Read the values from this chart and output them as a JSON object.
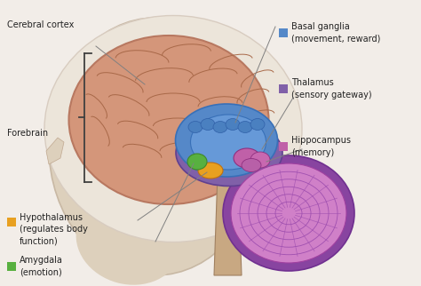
{
  "bg_color": "#f2ede8",
  "labels": {
    "cerebral_cortex": "Cerebral cortex",
    "forebrain": "Forebrain",
    "basal_ganglia": "Basal ganglia\n(movement, reward)",
    "thalamus": "Thalamus\n(sensory gateway)",
    "hippocampus": "Hippocampus\n(memory)",
    "hypothalamus": "Hypothalamus\n(regulates body\nfunction)",
    "amygdala": "Amygdala\n(emotion)"
  },
  "colors": {
    "face_skin": "#ddd0bc",
    "skull_inner": "#ece5da",
    "cerebral_cortex": "#d4967a",
    "cortex_edge": "#b87860",
    "sulci": "#a86848",
    "basal_ganglia_outer": "#5588c8",
    "basal_ganglia_inner": "#6699d8",
    "caudate": "#4a80c0",
    "thalamus": "#8060a8",
    "thalamus_ring": "#9070b8",
    "hippocampus": "#c060a8",
    "hypothalamus": "#e8a020",
    "amygdala": "#58b040",
    "cerebellum_outer": "#8844a0",
    "cerebellum_inner": "#d080c8",
    "cerebellum_fold": "#a050b0",
    "brainstem": "#c8a882",
    "brainstem_edge": "#a08060"
  },
  "legend_colors": {
    "basal_ganglia": "#5588c8",
    "thalamus": "#8060a8",
    "hippocampus": "#c060a8",
    "hypothalamus": "#e8a020",
    "amygdala": "#58b040"
  }
}
